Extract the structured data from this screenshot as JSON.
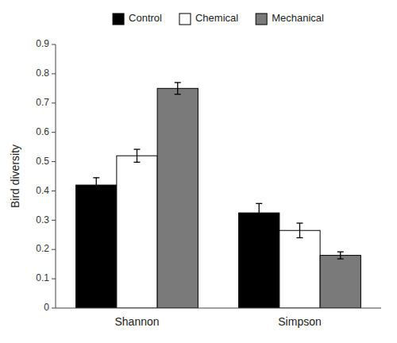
{
  "chart_data": {
    "type": "bar",
    "categories": [
      "Shannon",
      "Simpson"
    ],
    "series": [
      {
        "name": "Control",
        "color": "#000000",
        "values": [
          0.42,
          0.325
        ],
        "errors": [
          0.025,
          0.032
        ]
      },
      {
        "name": "Chemical",
        "color": "#ffffff",
        "values": [
          0.52,
          0.265
        ],
        "errors": [
          0.022,
          0.025
        ]
      },
      {
        "name": "Mechanical",
        "color": "#7a7a7a",
        "values": [
          0.75,
          0.18
        ],
        "errors": [
          0.02,
          0.012
        ]
      }
    ],
    "ylabel": "Bird diversity",
    "ylim": [
      0,
      0.9
    ],
    "yticks": [
      0,
      0.1,
      0.2,
      0.3,
      0.4,
      0.5,
      0.6,
      0.7,
      0.8,
      0.9
    ],
    "legend": "top",
    "grid": false
  }
}
